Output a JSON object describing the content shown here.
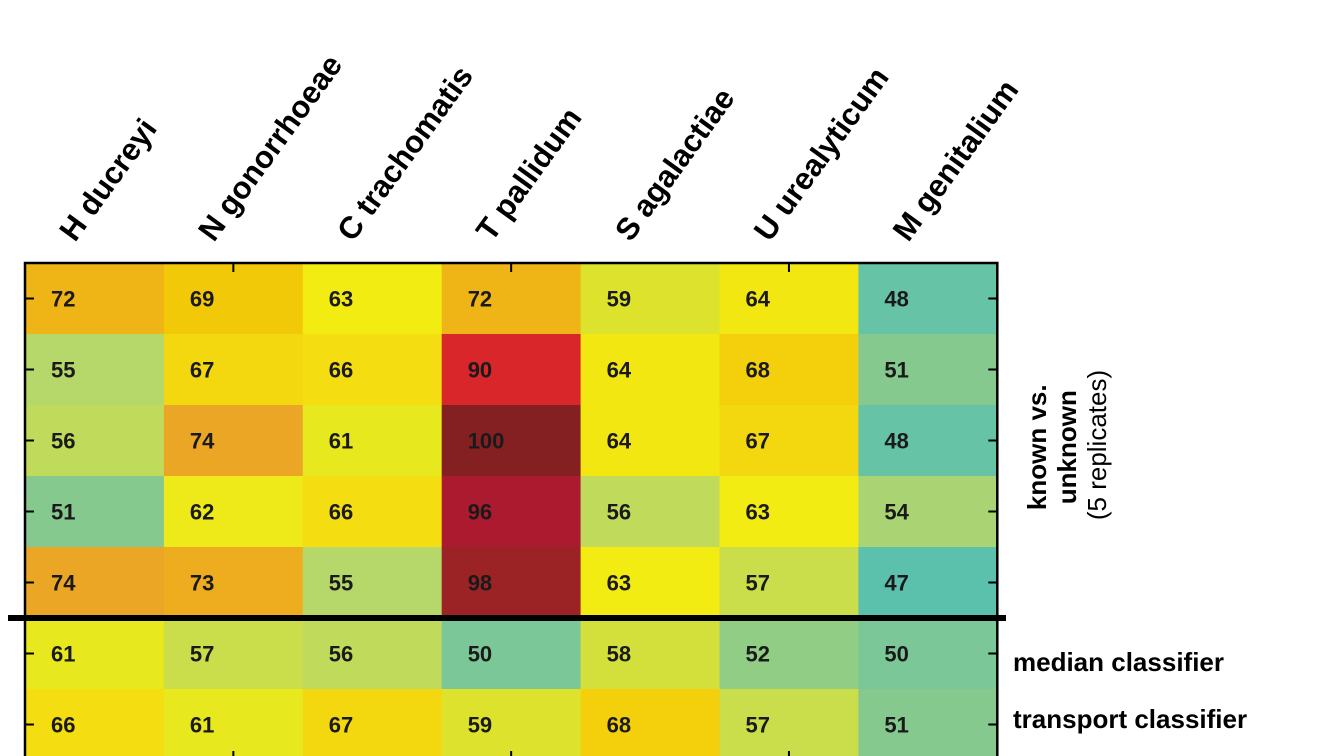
{
  "chart_data": {
    "type": "heatmap",
    "columns": [
      "H ducreyi",
      "N gonorrhoeae",
      "C trachomatis",
      "T pallidum",
      "S agalactiae",
      "U urealyticum",
      "M genitalium"
    ],
    "rows": [
      {
        "group": "known vs. unknown",
        "values": [
          72,
          69,
          63,
          72,
          59,
          64,
          48
        ]
      },
      {
        "group": "known vs. unknown",
        "values": [
          55,
          67,
          66,
          90,
          64,
          68,
          51
        ]
      },
      {
        "group": "known vs. unknown",
        "values": [
          56,
          74,
          61,
          100,
          64,
          67,
          48
        ]
      },
      {
        "group": "known vs. unknown",
        "values": [
          51,
          62,
          66,
          96,
          56,
          63,
          54
        ]
      },
      {
        "group": "known vs. unknown",
        "values": [
          74,
          73,
          55,
          98,
          63,
          57,
          47
        ]
      },
      {
        "group": "median classifier",
        "values": [
          61,
          57,
          56,
          50,
          58,
          52,
          50
        ]
      },
      {
        "group": "transport classifier",
        "values": [
          66,
          61,
          67,
          59,
          68,
          57,
          51
        ]
      }
    ],
    "row_group_labels": {
      "known_line1": "known vs.",
      "known_line2": "unknown",
      "known_line3": "(5 replicates)",
      "median": "median classifier",
      "transport": "transport classifier"
    },
    "color_scale": {
      "stops": [
        {
          "value": 47,
          "color": "#5bc1ad"
        },
        {
          "value": 51,
          "color": "#86c98f"
        },
        {
          "value": 55,
          "color": "#b6d76a"
        },
        {
          "value": 59,
          "color": "#dde32c"
        },
        {
          "value": 63,
          "color": "#f3ec12"
        },
        {
          "value": 67,
          "color": "#f4d80f"
        },
        {
          "value": 70,
          "color": "#f1c104"
        },
        {
          "value": 74,
          "color": "#eca626"
        },
        {
          "value": 90,
          "color": "#d8262a"
        },
        {
          "value": 96,
          "color": "#ab1a2e"
        },
        {
          "value": 98,
          "color": "#9b2326"
        },
        {
          "value": 100,
          "color": "#852022"
        }
      ]
    },
    "separator_after_row": 5
  }
}
